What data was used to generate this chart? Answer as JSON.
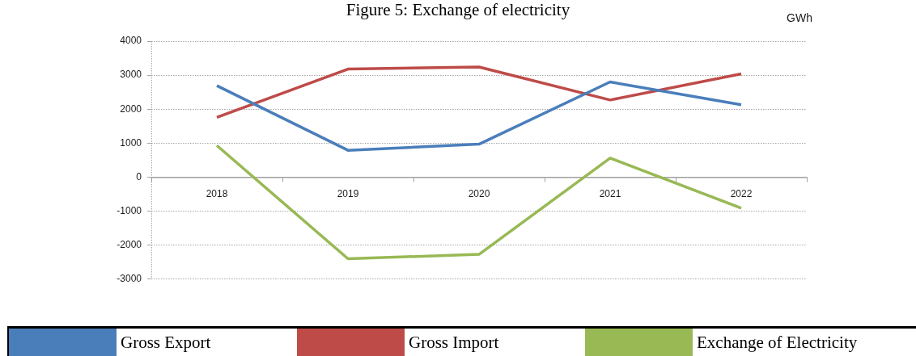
{
  "chart_data": {
    "type": "line",
    "title": "Figure 5: Exchange of electricity",
    "ylabel": "GWh",
    "categories": [
      "2018",
      "2019",
      "2020",
      "2021",
      "2022"
    ],
    "series": [
      {
        "name": "Gross Export",
        "color": "#4a7ebb",
        "values": [
          2690,
          790,
          970,
          2800,
          2130
        ]
      },
      {
        "name": "Gross Import",
        "color": "#be4b48",
        "values": [
          1760,
          3180,
          3240,
          2270,
          3040
        ]
      },
      {
        "name": "Exchange of Electricity",
        "color": "#98b954",
        "values": [
          930,
          -2400,
          -2270,
          560,
          -910
        ]
      }
    ],
    "ylim": [
      -3000,
      4000
    ],
    "yticks": [
      -3000,
      -2000,
      -1000,
      0,
      1000,
      2000,
      3000,
      4000
    ],
    "grid": "y",
    "legend": "bottom",
    "marker": "none",
    "line_style": "solid"
  }
}
